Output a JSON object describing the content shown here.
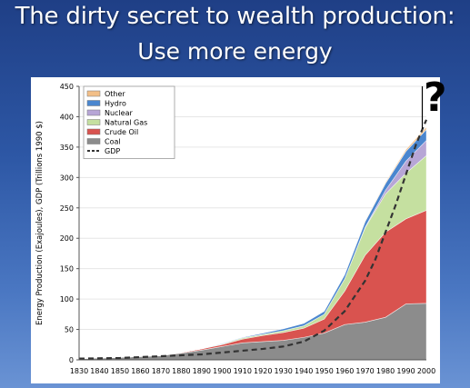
{
  "slide": {
    "title_line1": "The dirty secret to wealth production:",
    "title_line2": "Use more energy",
    "annotation": "?"
  },
  "chart_data": {
    "type": "area",
    "title": "",
    "xlabel": "",
    "ylabel": "Energy Production (Exajoules), GDP (Trillions 1990 $)",
    "xlim": [
      1830,
      2000
    ],
    "ylim": [
      0,
      450
    ],
    "x_ticks": [
      1830,
      1840,
      1850,
      1860,
      1870,
      1880,
      1890,
      1900,
      1910,
      1920,
      1930,
      1940,
      1950,
      1960,
      1970,
      1980,
      1990,
      2000
    ],
    "y_ticks": [
      0,
      50,
      100,
      150,
      200,
      250,
      300,
      350,
      400,
      450
    ],
    "stacked": true,
    "legend_position": "top-left",
    "x": [
      1830,
      1850,
      1870,
      1880,
      1890,
      1900,
      1910,
      1920,
      1930,
      1940,
      1950,
      1960,
      1970,
      1980,
      1990,
      2000
    ],
    "series": [
      {
        "name": "Coal",
        "color": "#8c8c8c",
        "values": [
          2,
          4,
          7,
          11,
          16,
          22,
          28,
          30,
          32,
          37,
          44,
          58,
          62,
          70,
          92,
          93
        ]
      },
      {
        "name": "Crude Oil",
        "color": "#d9534f",
        "values": [
          0,
          0,
          0,
          1,
          2,
          3,
          6,
          10,
          13,
          15,
          23,
          55,
          110,
          140,
          140,
          153
        ]
      },
      {
        "name": "Natural Gas",
        "color": "#c5e0a0",
        "values": [
          0,
          0,
          0,
          0,
          0,
          1,
          2,
          2,
          3,
          4,
          8,
          20,
          45,
          63,
          75,
          90
        ]
      },
      {
        "name": "Nuclear",
        "color": "#b7a6d6",
        "values": [
          0,
          0,
          0,
          0,
          0,
          0,
          0,
          0,
          0,
          0,
          0,
          0,
          1,
          6,
          20,
          25
        ]
      },
      {
        "name": "Hydro",
        "color": "#4a86cf",
        "values": [
          0,
          0,
          0,
          0,
          0,
          1,
          1,
          2,
          3,
          4,
          5,
          7,
          9,
          11,
          16,
          18
        ]
      },
      {
        "name": "Other",
        "color": "#f2bf88",
        "values": [
          0,
          0,
          0,
          0,
          0,
          0,
          0,
          0,
          0,
          0,
          0,
          0,
          1,
          2,
          3,
          4
        ]
      }
    ],
    "gdp": {
      "name": "GDP",
      "color": "#333333",
      "x": [
        1830,
        1850,
        1870,
        1890,
        1900,
        1910,
        1920,
        1930,
        1940,
        1950,
        1960,
        1970,
        1975,
        1980,
        1985,
        1990,
        1995,
        2000
      ],
      "values": [
        2,
        3,
        6,
        9,
        12,
        15,
        18,
        22,
        30,
        48,
        80,
        130,
        165,
        210,
        255,
        305,
        355,
        395
      ]
    },
    "legend_order": [
      "Other",
      "Hydro",
      "Nuclear",
      "Natural Gas",
      "Crude Oil",
      "Coal",
      "GDP"
    ]
  }
}
